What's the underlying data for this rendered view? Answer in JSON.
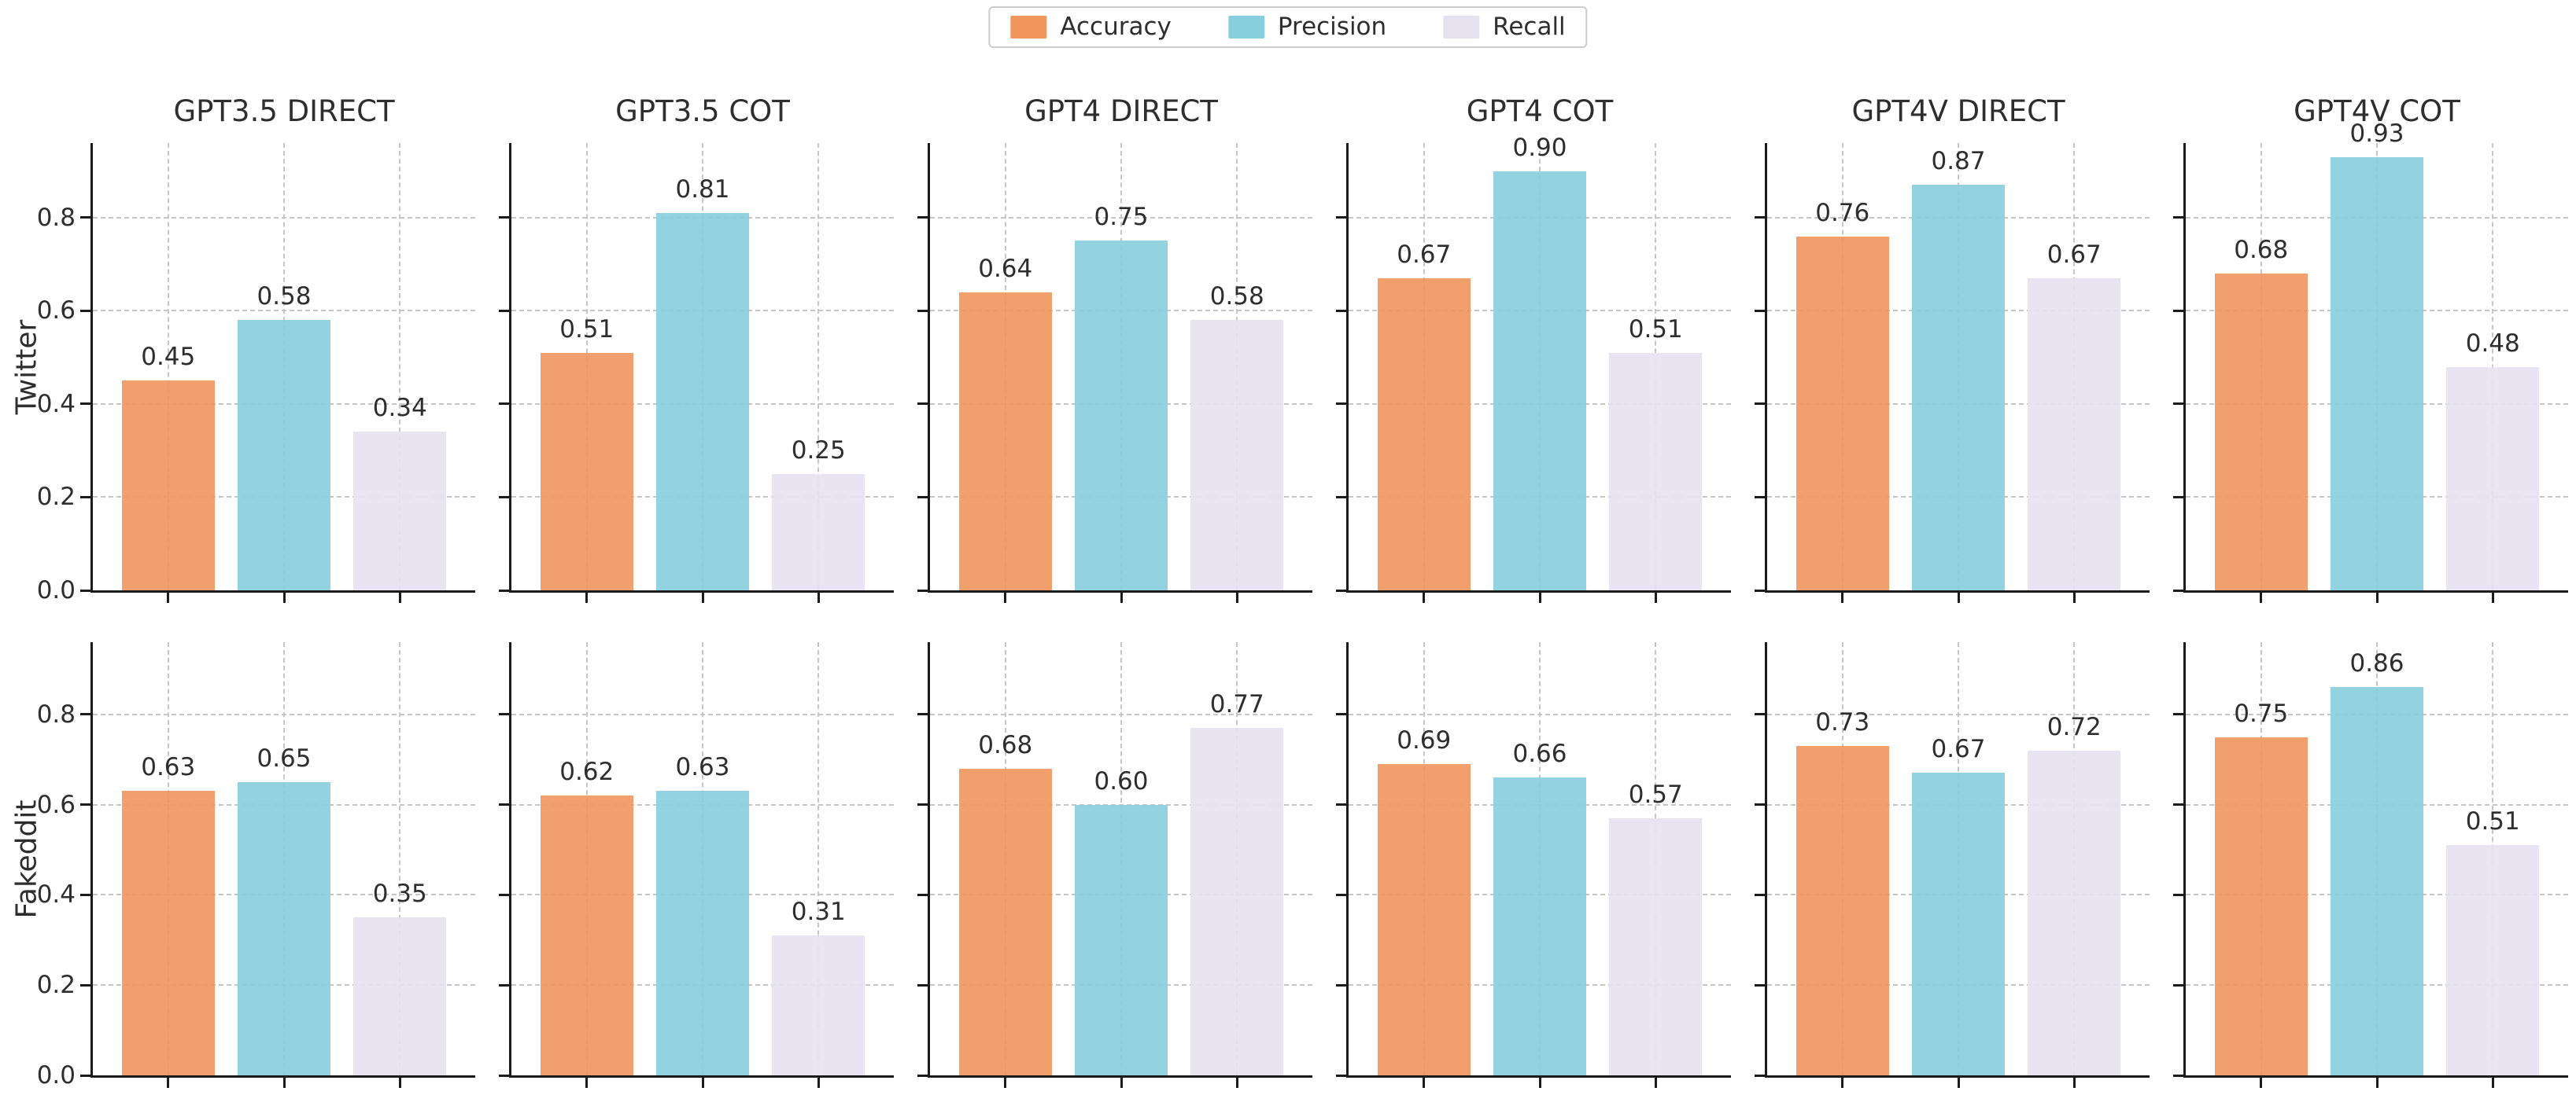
{
  "legend": {
    "items": [
      {
        "label": "Accuracy",
        "color": "#F0955C"
      },
      {
        "label": "Precision",
        "color": "#87CEDE"
      },
      {
        "label": "Recall",
        "color": "#E6E1EF"
      }
    ]
  },
  "chart_data": {
    "type": "bar",
    "title": "",
    "legend_position": "top-center",
    "grid": "dashed",
    "series_names": [
      "Accuracy",
      "Precision",
      "Recall"
    ],
    "columns": [
      "GPT3.5 DIRECT",
      "GPT3.5 COT",
      "GPT4 DIRECT",
      "GPT4 COT",
      "GPT4V DIRECT",
      "GPT4V COT"
    ],
    "rows": [
      {
        "label": "Twitter",
        "values": [
          [
            0.45,
            0.58,
            0.34
          ],
          [
            0.51,
            0.81,
            0.25
          ],
          [
            0.64,
            0.75,
            0.58
          ],
          [
            0.67,
            0.9,
            0.51
          ],
          [
            0.76,
            0.87,
            0.67
          ],
          [
            0.68,
            0.93,
            0.48
          ]
        ]
      },
      {
        "label": "Fakeddit",
        "values": [
          [
            0.63,
            0.65,
            0.35
          ],
          [
            0.62,
            0.63,
            0.31
          ],
          [
            0.68,
            0.6,
            0.77
          ],
          [
            0.69,
            0.66,
            0.57
          ],
          [
            0.73,
            0.67,
            0.72
          ],
          [
            0.75,
            0.86,
            0.51
          ]
        ]
      }
    ],
    "ylim": [
      0,
      0.96
    ],
    "yticks": [
      0.0,
      0.2,
      0.4,
      0.6,
      0.8
    ],
    "ytick_labels": [
      "0.0",
      "0.2",
      "0.4",
      "0.6",
      "0.8"
    ],
    "colors": {
      "accuracy": "#F0955C",
      "precision": "#87CEDE",
      "recall": "#E6E1EF",
      "gridline": "#c6c6c6",
      "spine": "#1b1b1b",
      "text": "#2e2e2e"
    }
  }
}
